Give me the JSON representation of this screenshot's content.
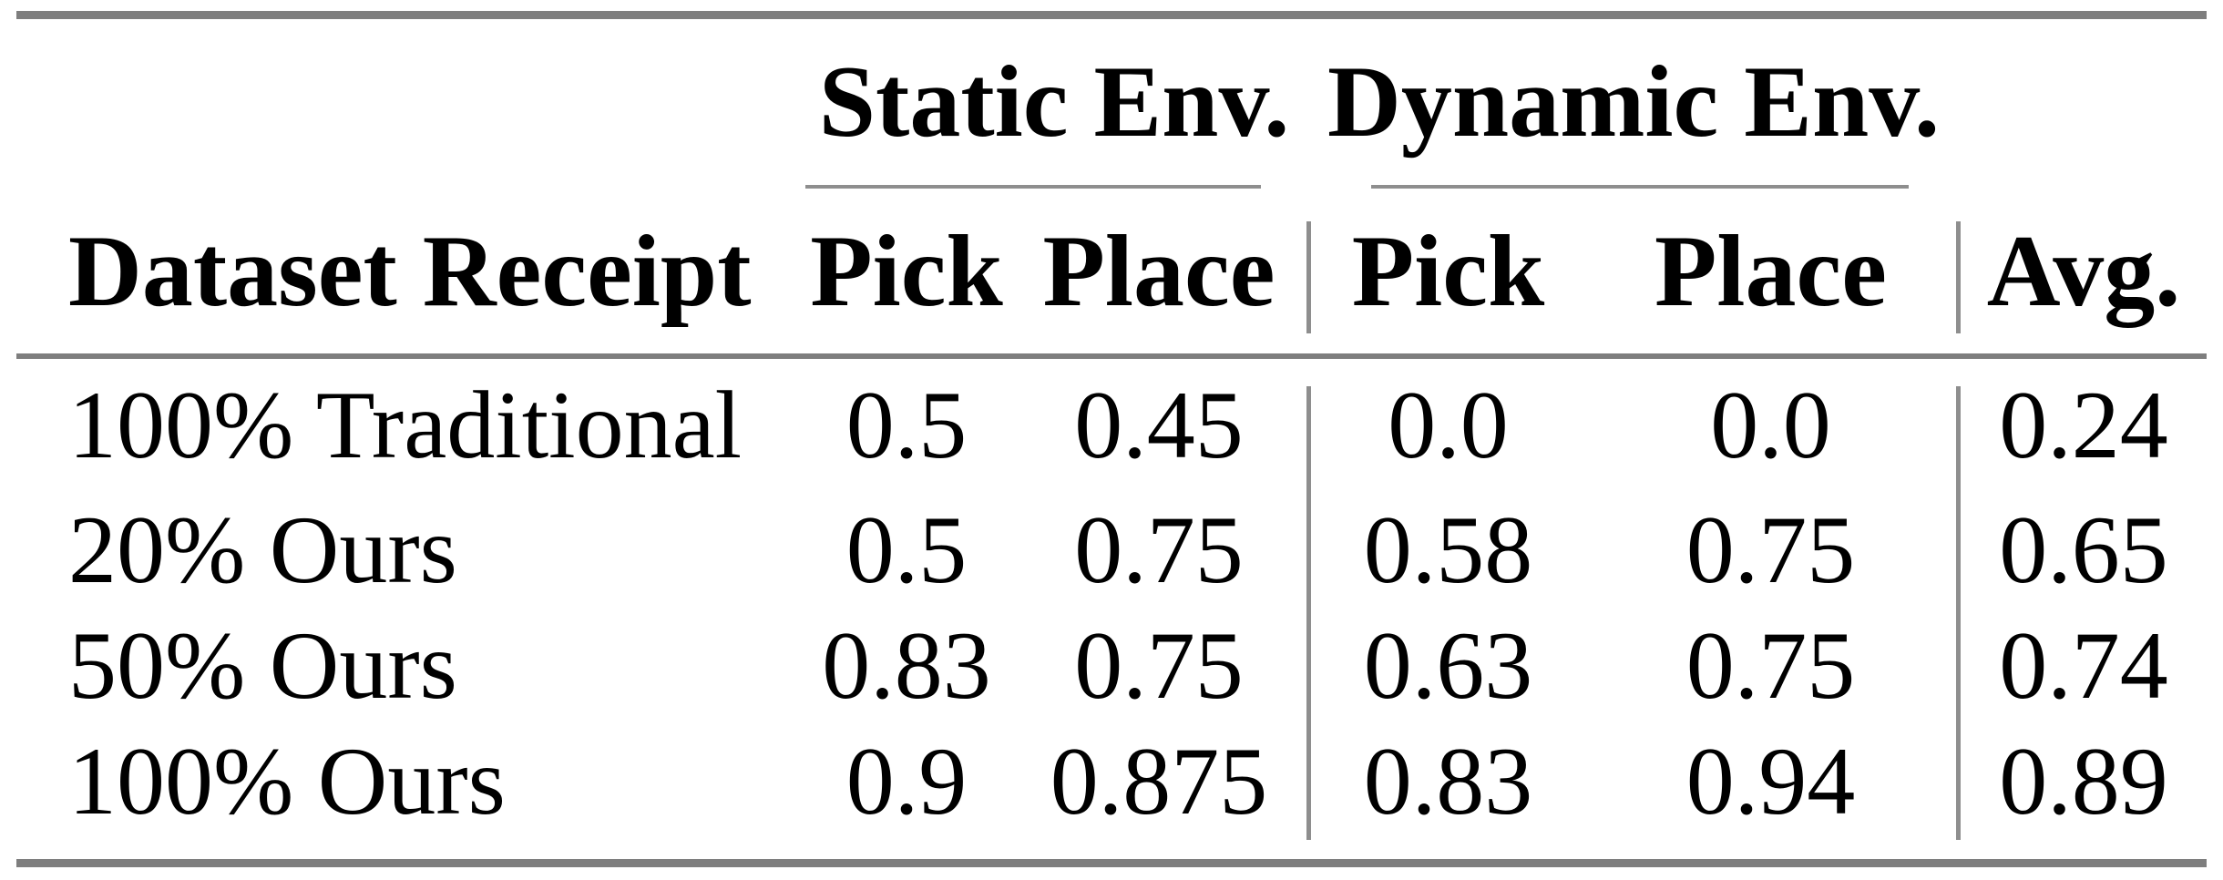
{
  "table": {
    "group_headers": [
      {
        "label": "Static Env."
      },
      {
        "label": "Dynamic Env."
      }
    ],
    "column_headers": {
      "label": "Dataset Receipt",
      "static_pick": "Pick",
      "static_place": "Place",
      "dynamic_pick": "Pick",
      "dynamic_place": "Place",
      "avg": "Avg."
    },
    "rows": [
      {
        "label": "100% Traditional",
        "static_pick": "0.5",
        "static_place": "0.45",
        "dynamic_pick": "0.0",
        "dynamic_place": "0.0",
        "avg": "0.24"
      },
      {
        "label": "20% Ours",
        "static_pick": "0.5",
        "static_place": "0.75",
        "dynamic_pick": "0.58",
        "dynamic_place": "0.75",
        "avg": "0.65"
      },
      {
        "label": "50% Ours",
        "static_pick": "0.83",
        "static_place": "0.75",
        "dynamic_pick": "0.63",
        "dynamic_place": "0.75",
        "avg": "0.74"
      },
      {
        "label": "100% Ours",
        "static_pick": "0.9",
        "static_place": "0.875",
        "dynamic_pick": "0.83",
        "dynamic_place": "0.94",
        "avg": "0.89"
      }
    ],
    "colors": {
      "text": "#000000",
      "rule_heavy": "#7e7e7e",
      "rule_light": "#8e8e8e",
      "background": "#ffffff"
    }
  },
  "chart_data": {
    "type": "table",
    "title": "",
    "column_groups": [
      "",
      "Static Env.",
      "Static Env.",
      "Dynamic Env.",
      "Dynamic Env.",
      ""
    ],
    "columns": [
      "Dataset Receipt",
      "Pick",
      "Place",
      "Pick",
      "Place",
      "Avg."
    ],
    "rows": [
      [
        "100% Traditional",
        0.5,
        0.45,
        0.0,
        0.0,
        0.24
      ],
      [
        "20% Ours",
        0.5,
        0.75,
        0.58,
        0.75,
        0.65
      ],
      [
        "50% Ours",
        0.83,
        0.75,
        0.63,
        0.75,
        0.74
      ],
      [
        "100% Ours",
        0.9,
        0.875,
        0.83,
        0.94,
        0.89
      ]
    ]
  }
}
